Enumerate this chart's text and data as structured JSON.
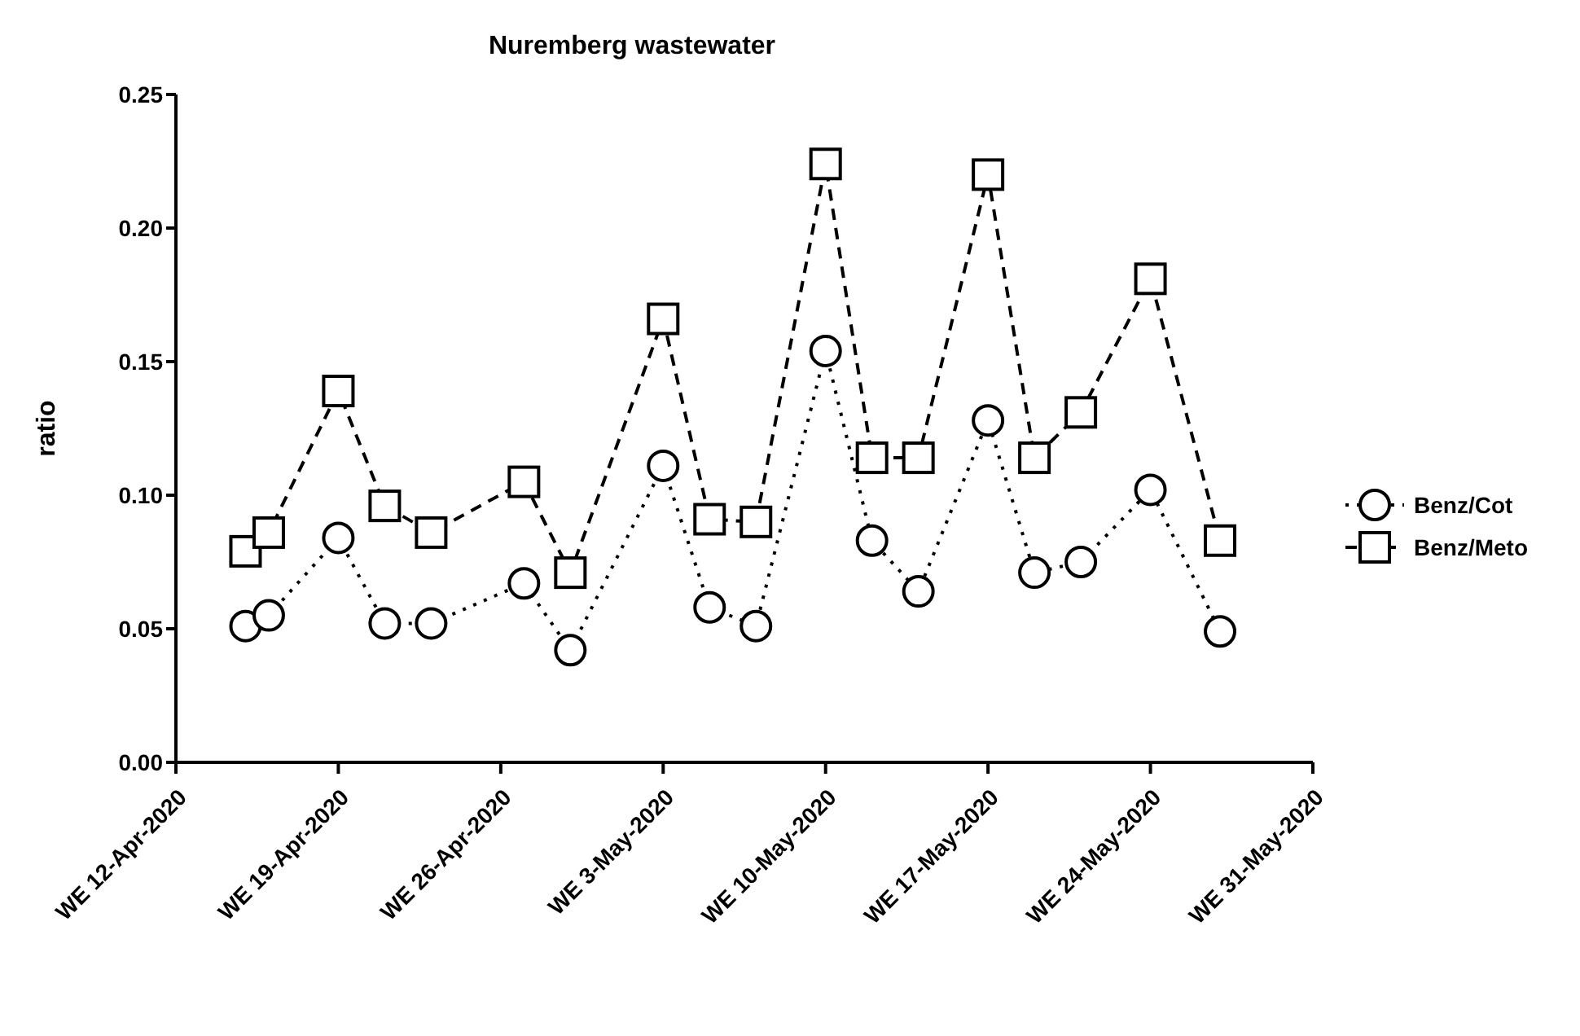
{
  "chart_data": {
    "type": "line",
    "title": "Nuremberg wastewater",
    "ylabel": "ratio",
    "x": [
      "2020-04-15",
      "2020-04-16",
      "2020-04-19",
      "2020-04-21",
      "2020-04-23",
      "2020-04-27",
      "2020-04-29",
      "2020-05-03",
      "2020-05-05",
      "2020-05-07",
      "2020-05-10",
      "2020-05-12",
      "2020-05-14",
      "2020-05-17",
      "2020-05-19",
      "2020-05-21",
      "2020-05-24",
      "2020-05-27"
    ],
    "series": [
      {
        "name": "Benz/Cot",
        "color": "#000000",
        "marker": "circle",
        "line_style": "dotted",
        "values": [
          0.051,
          0.055,
          0.084,
          0.052,
          0.052,
          0.067,
          0.042,
          0.111,
          0.058,
          0.051,
          0.154,
          0.083,
          0.064,
          0.128,
          0.071,
          0.075,
          0.102,
          0.049
        ]
      },
      {
        "name": "Benz/Meto",
        "color": "#000000",
        "marker": "square",
        "line_style": "dashed",
        "values": [
          0.079,
          0.086,
          0.139,
          0.096,
          0.086,
          0.105,
          0.071,
          0.166,
          0.091,
          0.09,
          0.224,
          0.114,
          0.114,
          0.22,
          0.114,
          0.131,
          0.181,
          0.083
        ]
      }
    ],
    "xlim": [
      "2020-04-12",
      "2020-05-31"
    ],
    "xticks": [
      {
        "value": "2020-04-12",
        "label": "WE 12-Apr-2020"
      },
      {
        "value": "2020-04-19",
        "label": "WE 19-Apr-2020"
      },
      {
        "value": "2020-04-26",
        "label": "WE 26-Apr-2020"
      },
      {
        "value": "2020-05-03",
        "label": "WE 3-May-2020"
      },
      {
        "value": "2020-05-10",
        "label": "WE 10-May-2020"
      },
      {
        "value": "2020-05-17",
        "label": "WE 17-May-2020"
      },
      {
        "value": "2020-05-24",
        "label": "WE 24-May-2020"
      },
      {
        "value": "2020-05-31",
        "label": "WE 31-May-2020"
      }
    ],
    "ylim": [
      0,
      0.25
    ],
    "yticks": [
      {
        "value": 0,
        "label": "0.00"
      },
      {
        "value": 0.05,
        "label": "0.05"
      },
      {
        "value": 0.1,
        "label": "0.10"
      },
      {
        "value": 0.15,
        "label": "0.15"
      },
      {
        "value": 0.2,
        "label": "0.20"
      },
      {
        "value": 0.25,
        "label": "0.25"
      }
    ],
    "grid": false,
    "legend": "right"
  }
}
